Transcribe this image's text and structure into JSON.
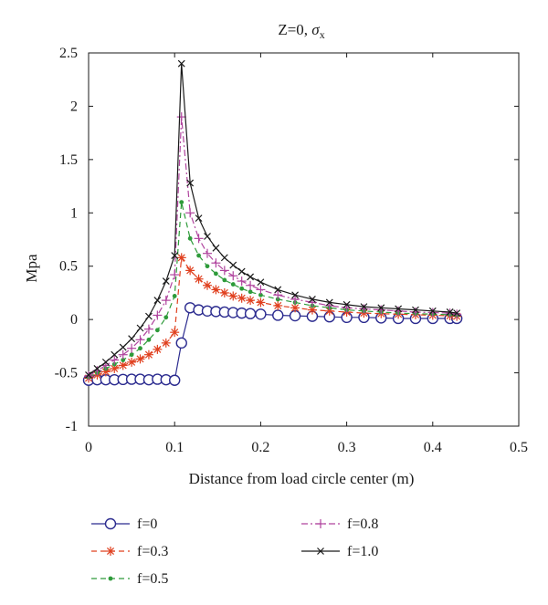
{
  "chart_data": {
    "type": "line",
    "title_main": "Z=0, ",
    "title_symbol": "σ",
    "title_sub": "x",
    "xlabel": "Distance from load circle center (m)",
    "ylabel": "Mpa",
    "xlim": [
      0,
      0.5
    ],
    "ylim": [
      -1,
      2.5
    ],
    "xticks": [
      0,
      0.1,
      0.2,
      0.3,
      0.4,
      0.5
    ],
    "xtick_labels": [
      "0",
      "0.1",
      "0.2",
      "0.3",
      "0.4",
      "0.5"
    ],
    "yticks": [
      -1,
      -0.5,
      0,
      0.5,
      1,
      1.5,
      2,
      2.5
    ],
    "ytick_labels": [
      "-1",
      "-0.5",
      "0",
      "0.5",
      "1",
      "1.5",
      "2",
      "2.5"
    ],
    "grid": false,
    "legend_position": "bottom",
    "series": [
      {
        "name": "f=0",
        "color": "#2b2b8f",
        "marker": "circle",
        "dash": "solid",
        "x": [
          0.0,
          0.01,
          0.02,
          0.03,
          0.04,
          0.05,
          0.06,
          0.07,
          0.08,
          0.09,
          0.1,
          0.108,
          0.118,
          0.128,
          0.138,
          0.148,
          0.158,
          0.168,
          0.178,
          0.188,
          0.2,
          0.22,
          0.24,
          0.26,
          0.28,
          0.3,
          0.32,
          0.34,
          0.36,
          0.38,
          0.4,
          0.42,
          0.428
        ],
        "y": [
          -0.57,
          -0.565,
          -0.565,
          -0.565,
          -0.562,
          -0.56,
          -0.56,
          -0.565,
          -0.56,
          -0.565,
          -0.57,
          -0.22,
          0.11,
          0.09,
          0.08,
          0.075,
          0.07,
          0.065,
          0.06,
          0.055,
          0.05,
          0.04,
          0.035,
          0.03,
          0.025,
          0.02,
          0.02,
          0.015,
          0.01,
          0.01,
          0.01,
          0.01,
          0.01
        ]
      },
      {
        "name": "f=0.3",
        "color": "#e0401f",
        "marker": "star",
        "dash": "dash",
        "x": [
          0.0,
          0.01,
          0.02,
          0.03,
          0.04,
          0.05,
          0.06,
          0.07,
          0.08,
          0.09,
          0.1,
          0.108,
          0.118,
          0.128,
          0.138,
          0.148,
          0.158,
          0.168,
          0.178,
          0.188,
          0.2,
          0.22,
          0.24,
          0.26,
          0.28,
          0.3,
          0.32,
          0.34,
          0.36,
          0.38,
          0.4,
          0.42,
          0.428
        ],
        "y": [
          -0.55,
          -0.52,
          -0.49,
          -0.46,
          -0.43,
          -0.4,
          -0.37,
          -0.33,
          -0.28,
          -0.22,
          -0.12,
          0.58,
          0.46,
          0.38,
          0.32,
          0.28,
          0.25,
          0.22,
          0.2,
          0.18,
          0.16,
          0.13,
          0.11,
          0.09,
          0.08,
          0.07,
          0.06,
          0.055,
          0.05,
          0.045,
          0.04,
          0.035,
          0.03
        ]
      },
      {
        "name": "f=0.5",
        "color": "#2e9b3a",
        "marker": "dot",
        "dash": "dash",
        "x": [
          0.0,
          0.01,
          0.02,
          0.03,
          0.04,
          0.05,
          0.06,
          0.07,
          0.08,
          0.09,
          0.1,
          0.108,
          0.118,
          0.128,
          0.138,
          0.148,
          0.158,
          0.168,
          0.178,
          0.188,
          0.2,
          0.22,
          0.24,
          0.26,
          0.28,
          0.3,
          0.32,
          0.34,
          0.36,
          0.38,
          0.4,
          0.42,
          0.428
        ],
        "y": [
          -0.54,
          -0.5,
          -0.46,
          -0.42,
          -0.38,
          -0.33,
          -0.27,
          -0.19,
          -0.1,
          0.02,
          0.22,
          1.1,
          0.76,
          0.6,
          0.5,
          0.43,
          0.37,
          0.33,
          0.29,
          0.26,
          0.23,
          0.19,
          0.16,
          0.13,
          0.11,
          0.09,
          0.08,
          0.07,
          0.06,
          0.055,
          0.05,
          0.045,
          0.04
        ]
      },
      {
        "name": "f=0.8",
        "color": "#b0449e",
        "marker": "plus",
        "dash": "dashdot",
        "x": [
          0.0,
          0.01,
          0.02,
          0.03,
          0.04,
          0.05,
          0.06,
          0.07,
          0.08,
          0.09,
          0.1,
          0.108,
          0.118,
          0.128,
          0.138,
          0.148,
          0.158,
          0.168,
          0.178,
          0.188,
          0.2,
          0.22,
          0.24,
          0.26,
          0.28,
          0.3,
          0.32,
          0.34,
          0.36,
          0.38,
          0.4,
          0.42,
          0.428
        ],
        "y": [
          -0.53,
          -0.48,
          -0.43,
          -0.38,
          -0.33,
          -0.27,
          -0.19,
          -0.09,
          0.04,
          0.18,
          0.42,
          1.9,
          1.0,
          0.76,
          0.62,
          0.53,
          0.46,
          0.41,
          0.36,
          0.32,
          0.28,
          0.23,
          0.19,
          0.16,
          0.13,
          0.11,
          0.1,
          0.09,
          0.08,
          0.07,
          0.065,
          0.06,
          0.05
        ]
      },
      {
        "name": "f=1.0",
        "color": "#1a1a1a",
        "marker": "x",
        "dash": "solid",
        "x": [
          0.0,
          0.01,
          0.02,
          0.03,
          0.04,
          0.05,
          0.06,
          0.07,
          0.08,
          0.09,
          0.1,
          0.108,
          0.118,
          0.128,
          0.138,
          0.148,
          0.158,
          0.168,
          0.178,
          0.188,
          0.2,
          0.22,
          0.24,
          0.26,
          0.28,
          0.3,
          0.32,
          0.34,
          0.36,
          0.38,
          0.4,
          0.42,
          0.428
        ],
        "y": [
          -0.52,
          -0.46,
          -0.4,
          -0.33,
          -0.26,
          -0.18,
          -0.08,
          0.03,
          0.18,
          0.36,
          0.6,
          2.4,
          1.28,
          0.95,
          0.78,
          0.67,
          0.58,
          0.51,
          0.45,
          0.4,
          0.35,
          0.28,
          0.23,
          0.19,
          0.16,
          0.14,
          0.12,
          0.11,
          0.1,
          0.09,
          0.08,
          0.07,
          0.06
        ]
      }
    ]
  }
}
